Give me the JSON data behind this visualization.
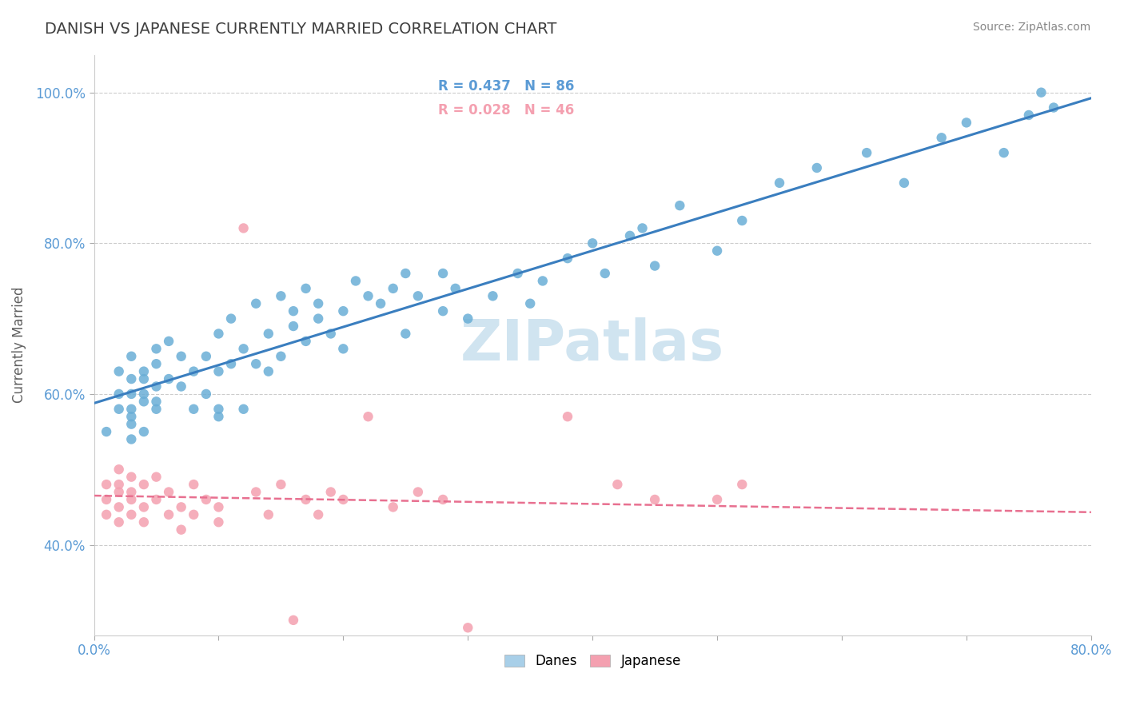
{
  "title": "DANISH VS JAPANESE CURRENTLY MARRIED CORRELATION CHART",
  "source": "Source: ZipAtlas.com",
  "xlabel_text": "",
  "ylabel_text": "Currently Married",
  "x_min": 0.0,
  "x_max": 0.8,
  "y_min": 0.28,
  "y_max": 1.05,
  "x_ticks": [
    0.0,
    0.1,
    0.2,
    0.3,
    0.4,
    0.5,
    0.6,
    0.7,
    0.8
  ],
  "x_tick_labels": [
    "0.0%",
    "",
    "",
    "",
    "",
    "",
    "",
    "",
    "80.0%"
  ],
  "y_ticks": [
    0.4,
    0.6,
    0.8,
    1.0
  ],
  "y_tick_labels": [
    "40.0%",
    "60.0%",
    "80.0%",
    "100.0%"
  ],
  "danes_R": 0.437,
  "danes_N": 86,
  "japanese_R": 0.028,
  "japanese_N": 46,
  "danes_color": "#6aaed6",
  "japanese_color": "#f4a0b0",
  "danes_line_color": "#3a7ebf",
  "japanese_line_color": "#e87090",
  "legend_danes_color": "#a8cfe8",
  "legend_japanese_color": "#f4a0b0",
  "danes_x": [
    0.01,
    0.02,
    0.02,
    0.02,
    0.03,
    0.03,
    0.03,
    0.03,
    0.03,
    0.03,
    0.03,
    0.04,
    0.04,
    0.04,
    0.04,
    0.04,
    0.05,
    0.05,
    0.05,
    0.05,
    0.05,
    0.06,
    0.06,
    0.07,
    0.07,
    0.08,
    0.08,
    0.09,
    0.09,
    0.1,
    0.1,
    0.1,
    0.1,
    0.11,
    0.11,
    0.12,
    0.12,
    0.13,
    0.13,
    0.14,
    0.14,
    0.15,
    0.15,
    0.16,
    0.16,
    0.17,
    0.17,
    0.18,
    0.18,
    0.19,
    0.2,
    0.2,
    0.21,
    0.22,
    0.23,
    0.24,
    0.25,
    0.25,
    0.26,
    0.28,
    0.28,
    0.29,
    0.3,
    0.32,
    0.34,
    0.35,
    0.36,
    0.38,
    0.4,
    0.41,
    0.43,
    0.44,
    0.45,
    0.47,
    0.5,
    0.52,
    0.55,
    0.58,
    0.62,
    0.65,
    0.68,
    0.7,
    0.73,
    0.75,
    0.76,
    0.77
  ],
  "danes_y": [
    0.55,
    0.6,
    0.58,
    0.63,
    0.56,
    0.6,
    0.62,
    0.58,
    0.54,
    0.65,
    0.57,
    0.59,
    0.62,
    0.55,
    0.6,
    0.63,
    0.59,
    0.64,
    0.61,
    0.58,
    0.66,
    0.62,
    0.67,
    0.61,
    0.65,
    0.58,
    0.63,
    0.6,
    0.65,
    0.57,
    0.63,
    0.68,
    0.58,
    0.64,
    0.7,
    0.58,
    0.66,
    0.64,
    0.72,
    0.63,
    0.68,
    0.65,
    0.73,
    0.69,
    0.71,
    0.67,
    0.74,
    0.7,
    0.72,
    0.68,
    0.66,
    0.71,
    0.75,
    0.73,
    0.72,
    0.74,
    0.68,
    0.76,
    0.73,
    0.71,
    0.76,
    0.74,
    0.7,
    0.73,
    0.76,
    0.72,
    0.75,
    0.78,
    0.8,
    0.76,
    0.81,
    0.82,
    0.77,
    0.85,
    0.79,
    0.83,
    0.88,
    0.9,
    0.92,
    0.88,
    0.94,
    0.96,
    0.92,
    0.97,
    1.0,
    0.98
  ],
  "japanese_x": [
    0.01,
    0.01,
    0.01,
    0.02,
    0.02,
    0.02,
    0.02,
    0.02,
    0.03,
    0.03,
    0.03,
    0.03,
    0.04,
    0.04,
    0.04,
    0.05,
    0.05,
    0.06,
    0.06,
    0.07,
    0.07,
    0.08,
    0.08,
    0.09,
    0.1,
    0.1,
    0.12,
    0.13,
    0.14,
    0.15,
    0.16,
    0.17,
    0.18,
    0.19,
    0.2,
    0.22,
    0.24,
    0.26,
    0.28,
    0.3,
    0.32,
    0.38,
    0.42,
    0.45,
    0.5,
    0.52
  ],
  "japanese_y": [
    0.46,
    0.48,
    0.44,
    0.47,
    0.5,
    0.45,
    0.43,
    0.48,
    0.46,
    0.49,
    0.44,
    0.47,
    0.45,
    0.48,
    0.43,
    0.46,
    0.49,
    0.44,
    0.47,
    0.45,
    0.42,
    0.44,
    0.48,
    0.46,
    0.45,
    0.43,
    0.82,
    0.47,
    0.44,
    0.48,
    0.3,
    0.46,
    0.44,
    0.47,
    0.46,
    0.57,
    0.45,
    0.47,
    0.46,
    0.29,
    0.27,
    0.57,
    0.48,
    0.46,
    0.46,
    0.48
  ],
  "background_color": "#ffffff",
  "grid_color": "#cccccc",
  "watermark_text": "ZIPatlas",
  "watermark_color": "#d0e4f0",
  "title_color": "#404040",
  "tick_color": "#5b9bd5",
  "axis_label_color": "#606060"
}
